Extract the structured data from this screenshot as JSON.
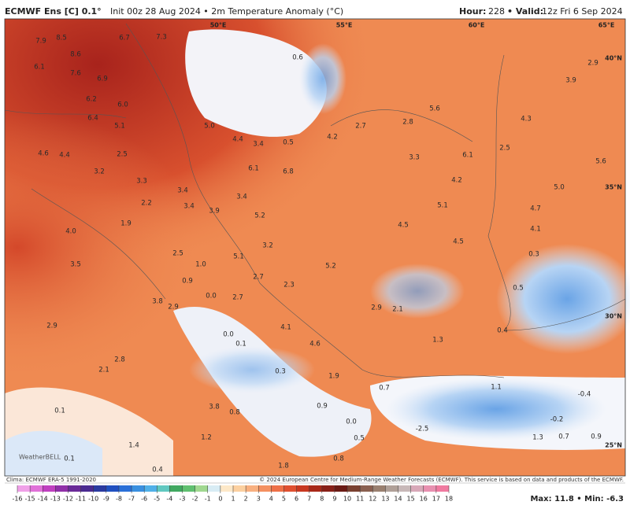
{
  "header": {
    "title": "ECMWF Ens [C] 0.1°",
    "subtitle": "Init 00z 28 Aug 2024 • 2m Temperature Anomaly (°C)",
    "hour_label": "Hour:",
    "hour": "228",
    "valid_label": "• Valid:",
    "valid": "12z Fri 6 Sep 2024"
  },
  "map": {
    "longitudes": [
      "50°E",
      "55°E",
      "60°E",
      "65°E"
    ],
    "latitudes": [
      "40°N",
      "35°N",
      "30°N",
      "25°N"
    ],
    "labels": [
      "7.9",
      "8.5",
      "6.7",
      "7.3",
      "6.1",
      "8.6",
      "7.6",
      "6.9",
      "6.2",
      "6.0",
      "6.4",
      "5.1",
      "4.6",
      "4.4",
      "2.5",
      "3.2",
      "3.3",
      "3.4",
      "2.2",
      "3.4",
      "3.9",
      "1.9",
      "4.0",
      "3.5",
      "2.5",
      "1.0",
      "0.9",
      "0.0",
      "3.8",
      "2.9",
      "2.9",
      "2.8",
      "2.1",
      "0.1",
      "1.4",
      "0.1",
      "0.4",
      "1.2",
      "3.8",
      "0.8",
      "0.6",
      "5.0",
      "4.4",
      "3.4",
      "0.5",
      "4.2",
      "2.7",
      "2.8",
      "5.6",
      "3.3",
      "6.1",
      "4.2",
      "5.1",
      "6.8",
      "6.1",
      "3.4",
      "5.2",
      "3.2",
      "5.1",
      "2.3",
      "2.7",
      "2.7",
      "0.0",
      "0.1",
      "4.1",
      "4.6",
      "1.9",
      "0.3",
      "2.9",
      "2.1",
      "1.3",
      "4.5",
      "5.2",
      "4.5",
      "2.5",
      "4.3",
      "2.9",
      "3.9",
      "5.6",
      "5.0",
      "4.7",
      "4.1",
      "0.3",
      "0.5",
      "0.4",
      "1.1",
      "0.7",
      "-0.4",
      "-0.2",
      "0.0",
      "0.9",
      "-2.5",
      "0.5",
      "1.3",
      "0.7",
      "0.9",
      "1.8",
      "0.8"
    ],
    "watermark": "WeatherBELL"
  },
  "footer": {
    "climo": "Clima: ECMWF ERA-5 1991-2020",
    "copyright": "© 2024 European Centre for Medium-Range Weather Forecasts (ECMWF). This service is based on data and products of the ECMWF.",
    "extremes": "Max: 11.8 • Min: -6.3"
  },
  "colorbar": {
    "ticks": [
      -16,
      -15,
      -14,
      -13,
      -12,
      -11,
      -10,
      -9,
      -8,
      -7,
      -6,
      -5,
      -4,
      -3,
      -2,
      -1,
      0,
      1,
      2,
      3,
      4,
      5,
      6,
      7,
      8,
      9,
      10,
      11,
      12,
      13,
      14,
      15,
      16,
      17,
      18
    ]
  }
}
